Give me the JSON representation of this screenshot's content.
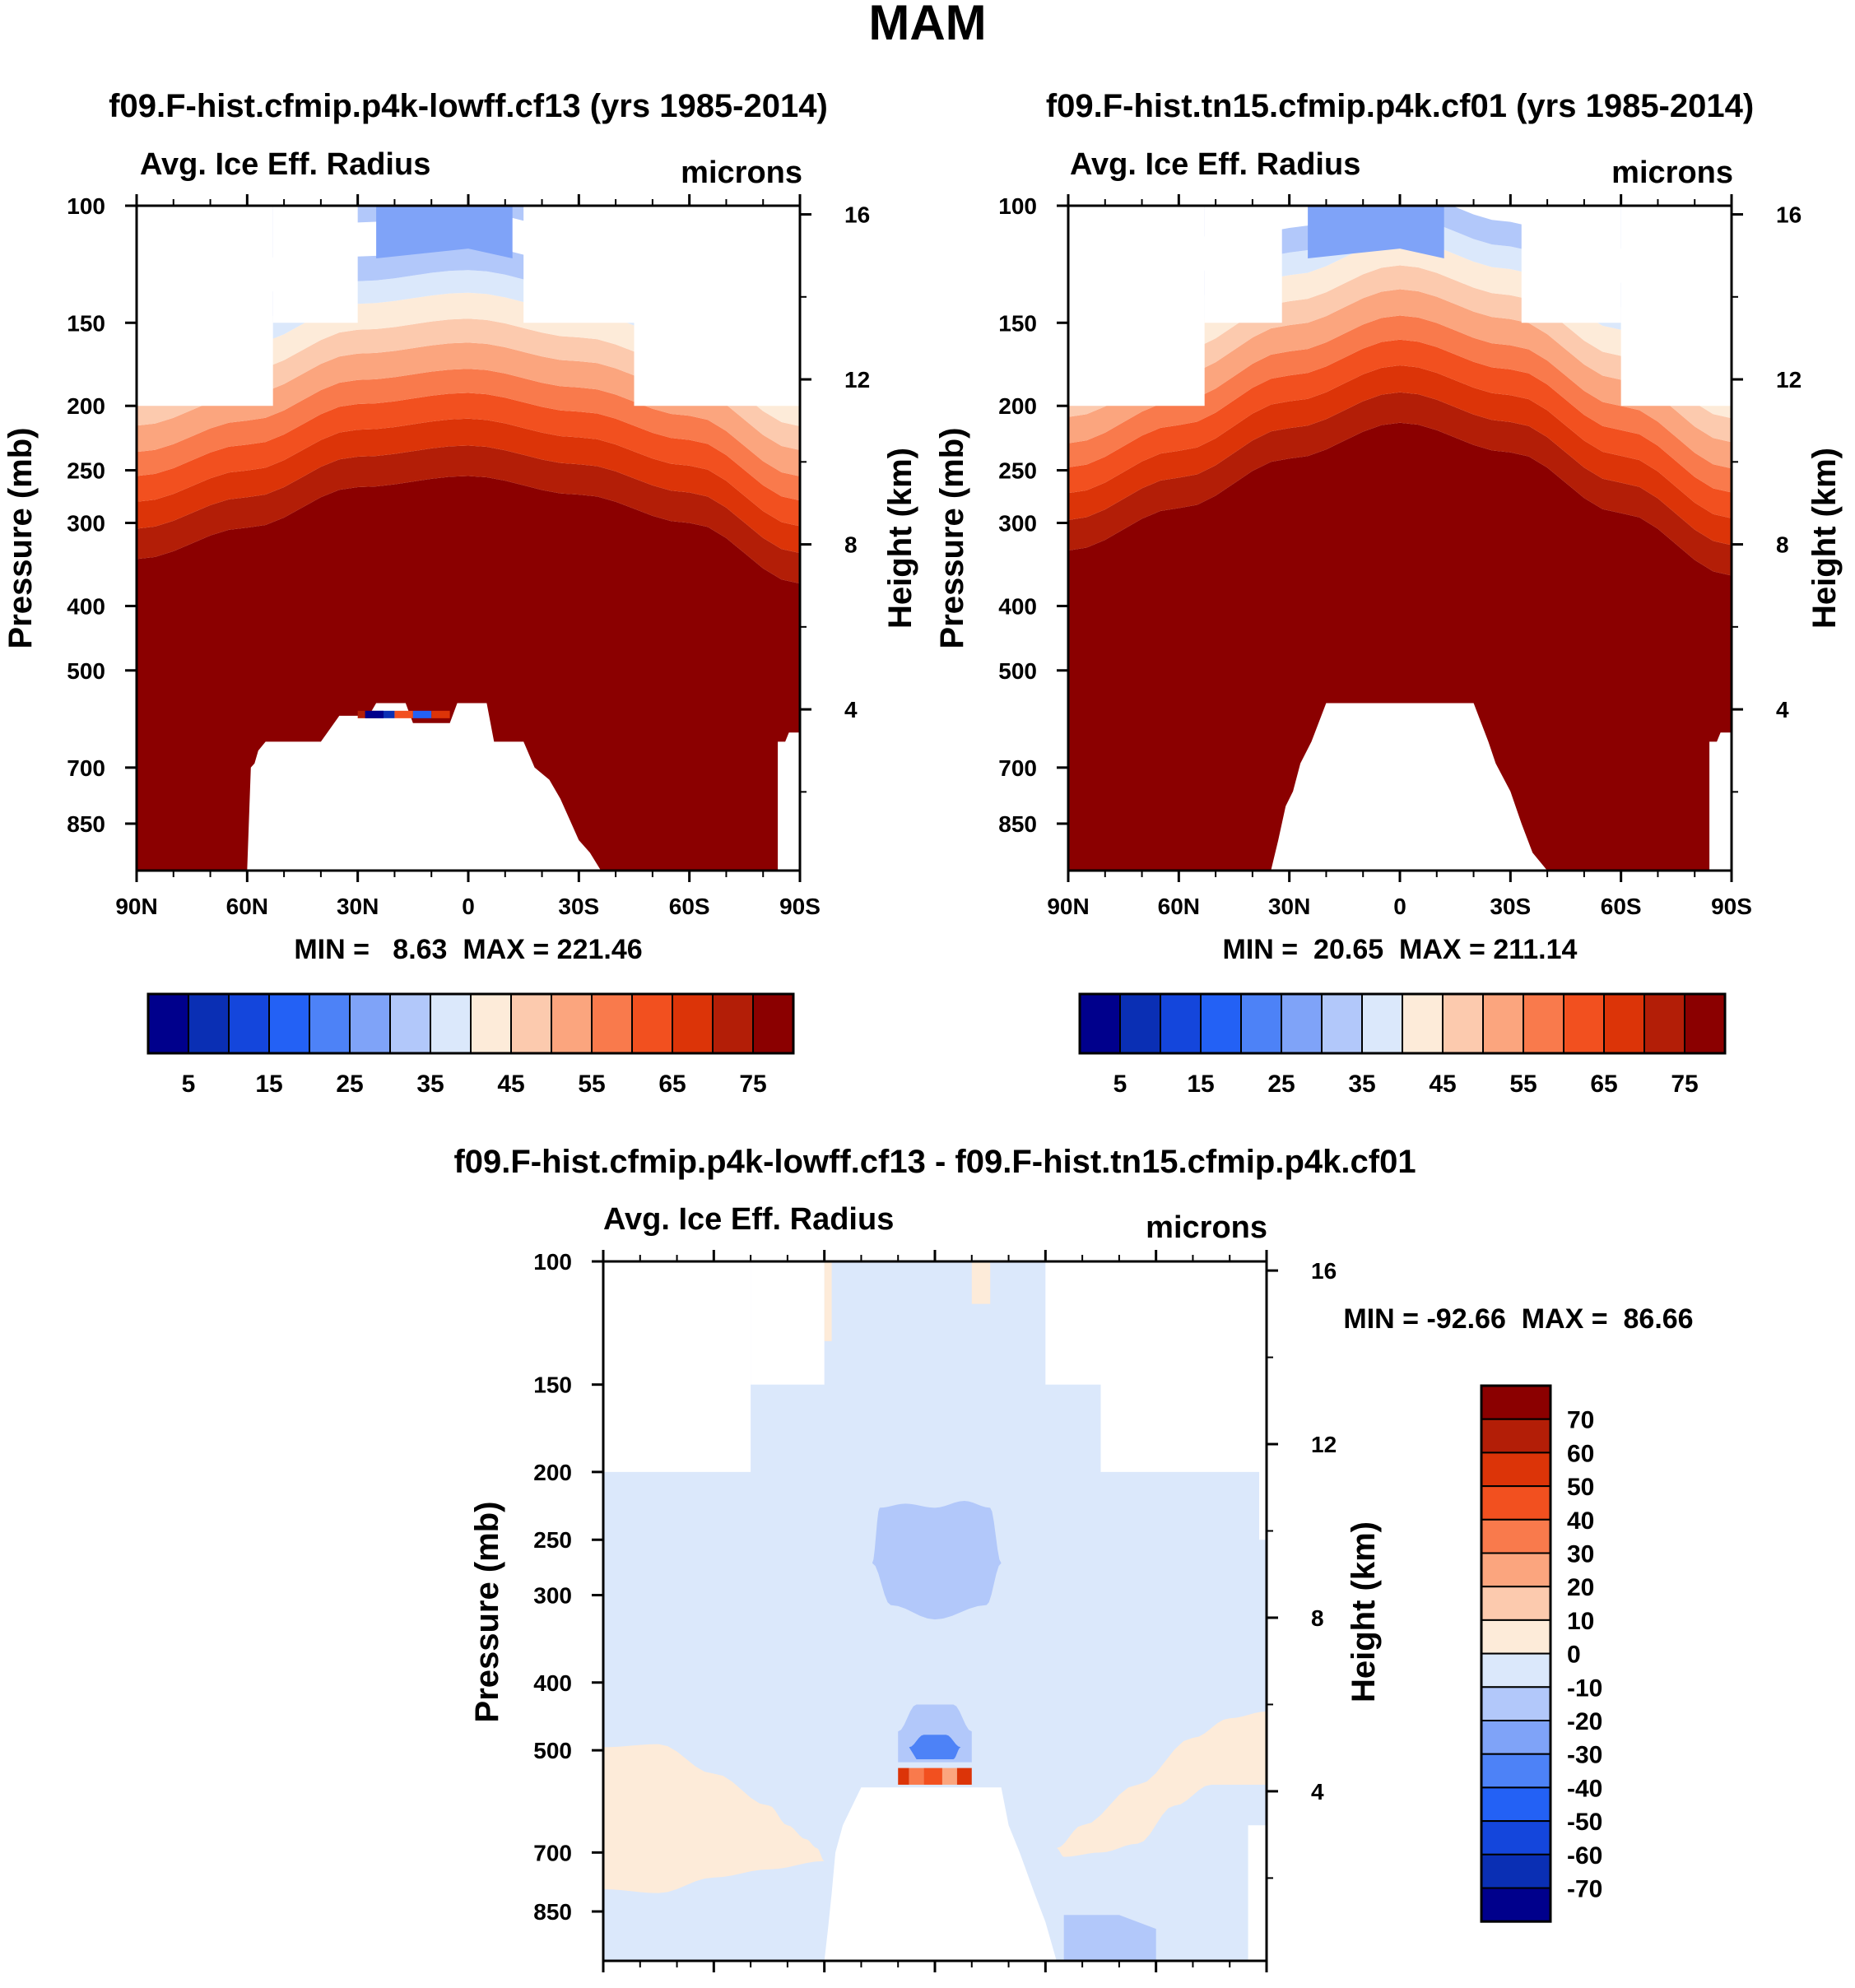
{
  "figure": {
    "title": "MAM"
  },
  "colors": {
    "abs_fill": [
      "#00008c",
      "#0a2fb4",
      "#1446dc",
      "#2361f5",
      "#4d82f7",
      "#7fa3f8",
      "#b2c8fa",
      "#dbe8fb",
      "#fdebd9",
      "#fccaae",
      "#fba57e",
      "#f97a4c",
      "#f2501f",
      "#dc3408",
      "#b31e07",
      "#8b0000"
    ],
    "diff_fill": [
      "#00008c",
      "#0a2fb4",
      "#1446dc",
      "#2361f5",
      "#4d82f7",
      "#7fa3f8",
      "#b2c8fa",
      "#dbe8fb",
      "#fdebd9",
      "#fccaae",
      "#fba57e",
      "#f97a4c",
      "#f2501f",
      "#dc3408",
      "#b31e07",
      "#8b0000"
    ]
  },
  "chart_data": [
    {
      "type": "heatmap",
      "id": "panel1",
      "title": "f09.F-hist.cfmip.p4k-lowff.cf13 (yrs 1985-2014)",
      "left_label": "Avg. Ice Eff. Radius",
      "right_label": "microns",
      "ylabel": "Pressure (mb)",
      "y2label": "Height (km)",
      "x_ticks": [
        "90N",
        "60N",
        "30N",
        "0",
        "30S",
        "60S",
        "90S"
      ],
      "x_tick_values": [
        90,
        60,
        30,
        0,
        -30,
        -60,
        -90
      ],
      "y_ticks": [
        100,
        150,
        200,
        250,
        300,
        400,
        500,
        700,
        850
      ],
      "y2_ticks": [
        16,
        12,
        8,
        4
      ],
      "ylim": [
        100,
        1000
      ],
      "y_scale": "log",
      "min": 8.63,
      "max": 221.46,
      "stats_label": "MIN =   8.63  MAX = 221.46",
      "field_top_by_latitude": [
        {
          "lat_range": [
            90,
            53
          ],
          "top_mb": 200
        },
        {
          "lat_range": [
            53,
            30
          ],
          "top_mb": 150
        },
        {
          "lat_range": [
            30,
            -15
          ],
          "top_mb": 100
        },
        {
          "lat_range": [
            -15,
            -45
          ],
          "top_mb": 150
        },
        {
          "lat_range": [
            -45,
            -90
          ],
          "top_mb": 200
        }
      ],
      "deep_red_top_mb": [
        {
          "lat": 90,
          "p": 340
        },
        {
          "lat": 60,
          "p": 305
        },
        {
          "lat": 30,
          "p": 265
        },
        {
          "lat": 0,
          "p": 255
        },
        {
          "lat": -30,
          "p": 272
        },
        {
          "lat": -60,
          "p": 300
        },
        {
          "lat": -90,
          "p": 370
        }
      ],
      "colorbar": {
        "labels": [
          "5",
          "15",
          "25",
          "35",
          "45",
          "55",
          "65",
          "75"
        ],
        "levels": [
          5,
          10,
          15,
          20,
          25,
          30,
          35,
          40,
          45,
          50,
          55,
          60,
          65,
          70,
          75
        ]
      }
    },
    {
      "type": "heatmap",
      "id": "panel2",
      "title": "f09.F-hist.tn15.cfmip.p4k.cf01 (yrs 1985-2014)",
      "left_label": "Avg. Ice Eff. Radius",
      "right_label": "microns",
      "ylabel": "Pressure (mb)",
      "y2label": "Height (km)",
      "x_ticks": [
        "90N",
        "60N",
        "30N",
        "0",
        "30S",
        "60S",
        "90S"
      ],
      "x_tick_values": [
        90,
        60,
        30,
        0,
        -30,
        -60,
        -90
      ],
      "y_ticks": [
        100,
        150,
        200,
        250,
        300,
        400,
        500,
        700,
        850
      ],
      "y2_ticks": [
        16,
        12,
        8,
        4
      ],
      "ylim": [
        100,
        1000
      ],
      "y_scale": "log",
      "min": 20.65,
      "max": 211.14,
      "stats_label": "MIN =  20.65  MAX = 211.14",
      "field_top_by_latitude": [
        {
          "lat_range": [
            90,
            53
          ],
          "top_mb": 200
        },
        {
          "lat_range": [
            53,
            32
          ],
          "top_mb": 150
        },
        {
          "lat_range": [
            32,
            -33
          ],
          "top_mb": 100
        },
        {
          "lat_range": [
            -33,
            -60
          ],
          "top_mb": 150
        },
        {
          "lat_range": [
            -60,
            -90
          ],
          "top_mb": 200
        }
      ],
      "deep_red_top_mb": [
        {
          "lat": 90,
          "p": 330
        },
        {
          "lat": 60,
          "p": 285
        },
        {
          "lat": 30,
          "p": 240
        },
        {
          "lat": 0,
          "p": 212
        },
        {
          "lat": -30,
          "p": 235
        },
        {
          "lat": -60,
          "p": 290
        },
        {
          "lat": -90,
          "p": 360
        }
      ],
      "colorbar": {
        "labels": [
          "5",
          "15",
          "25",
          "35",
          "45",
          "55",
          "65",
          "75"
        ],
        "levels": [
          5,
          10,
          15,
          20,
          25,
          30,
          35,
          40,
          45,
          50,
          55,
          60,
          65,
          70,
          75
        ]
      }
    },
    {
      "type": "heatmap",
      "id": "panel3",
      "title": "f09.F-hist.cfmip.p4k-lowff.cf13 - f09.F-hist.tn15.cfmip.p4k.cf01",
      "left_label": "Avg. Ice Eff. Radius",
      "right_label": "microns",
      "ylabel": "Pressure (mb)",
      "y2label": "Height (km)",
      "x_ticks": [
        "90N",
        "60N",
        "30N",
        "0",
        "30S",
        "60S",
        "90S"
      ],
      "x_tick_values": [
        90,
        60,
        30,
        0,
        -30,
        -60,
        -90
      ],
      "y_ticks": [
        100,
        150,
        200,
        250,
        300,
        400,
        500,
        700,
        850
      ],
      "y2_ticks": [
        16,
        12,
        8,
        4
      ],
      "ylim": [
        100,
        1000
      ],
      "y_scale": "log",
      "min": -92.66,
      "max": 86.66,
      "stats_label": "MIN = -92.66  MAX =  86.66",
      "colorbar": {
        "labels": [
          "70",
          "60",
          "50",
          "40",
          "30",
          "20",
          "10",
          "0",
          "-10",
          "-20",
          "-30",
          "-40",
          "-50",
          "-60",
          "-70"
        ],
        "levels": [
          70,
          60,
          50,
          40,
          30,
          20,
          10,
          0,
          -10,
          -20,
          -30,
          -40,
          -50,
          -60,
          -70
        ]
      }
    }
  ]
}
